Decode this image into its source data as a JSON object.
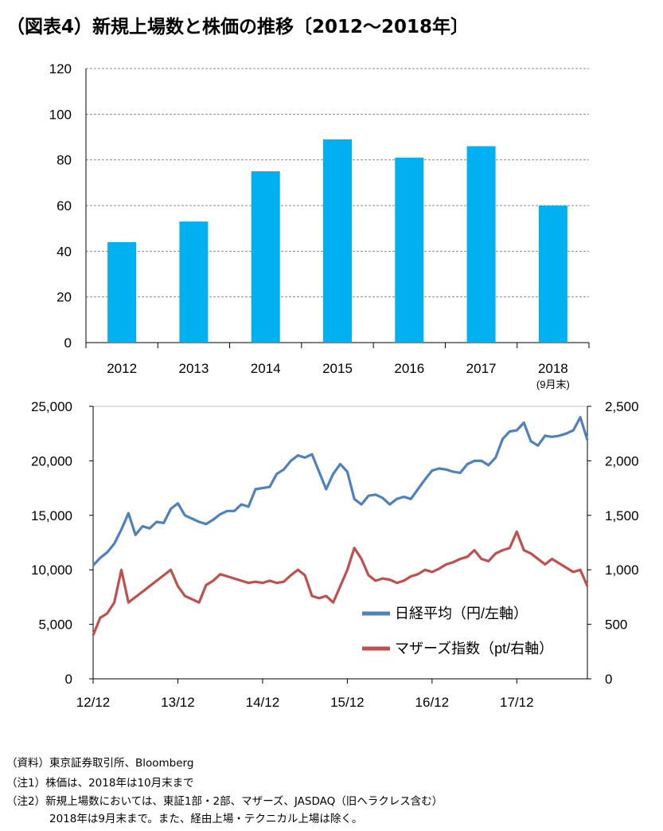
{
  "title": "（図表4）新規上場数と株価の推移〔2012～2018年〕",
  "colors": {
    "bar": "#00B0F0",
    "nikkei": "#4F81BD",
    "mothers": "#C0504D",
    "grid": "#8c8c8c"
  },
  "chart_data": [
    {
      "type": "bar",
      "categories": [
        "2012",
        "2013",
        "2014",
        "2015",
        "2016",
        "2017",
        "2018"
      ],
      "category_sub_labels": [
        "",
        "",
        "",
        "",
        "",
        "",
        "(9月末)"
      ],
      "values": [
        44,
        53,
        75,
        89,
        81,
        86,
        60
      ],
      "ylim": [
        0,
        120
      ],
      "yticks": [
        "0",
        "20",
        "40",
        "60",
        "80",
        "100",
        "120"
      ],
      "grid": true
    },
    {
      "type": "line",
      "x_ticks": [
        "12/12",
        "13/12",
        "14/12",
        "15/12",
        "16/12",
        "17/12"
      ],
      "y_left": {
        "ylim": [
          0,
          25000
        ],
        "ticks": [
          "0",
          "5,000",
          "10,000",
          "15,000",
          "20,000",
          "25,000"
        ]
      },
      "y_right": {
        "ylim": [
          0,
          2500
        ],
        "ticks": [
          "0",
          "500",
          "1,000",
          "1,500",
          "2,000",
          "2,500"
        ]
      },
      "legend_position": "bottom-right",
      "series": [
        {
          "name": "日経平均（円/左軸）",
          "axis": "left",
          "x": [
            "2012-12",
            "2013-01",
            "2013-02",
            "2013-03",
            "2013-04",
            "2013-05",
            "2013-06",
            "2013-07",
            "2013-08",
            "2013-09",
            "2013-10",
            "2013-11",
            "2013-12",
            "2014-01",
            "2014-02",
            "2014-03",
            "2014-04",
            "2014-05",
            "2014-06",
            "2014-07",
            "2014-08",
            "2014-09",
            "2014-10",
            "2014-11",
            "2014-12",
            "2015-01",
            "2015-02",
            "2015-03",
            "2015-04",
            "2015-05",
            "2015-06",
            "2015-07",
            "2015-08",
            "2015-09",
            "2015-10",
            "2015-11",
            "2015-12",
            "2016-01",
            "2016-02",
            "2016-03",
            "2016-04",
            "2016-05",
            "2016-06",
            "2016-07",
            "2016-08",
            "2016-09",
            "2016-10",
            "2016-11",
            "2016-12",
            "2017-01",
            "2017-02",
            "2017-03",
            "2017-04",
            "2017-05",
            "2017-06",
            "2017-07",
            "2017-08",
            "2017-09",
            "2017-10",
            "2017-11",
            "2017-12",
            "2018-01",
            "2018-02",
            "2018-03",
            "2018-04",
            "2018-05",
            "2018-06",
            "2018-07",
            "2018-08",
            "2018-09",
            "2018-10"
          ],
          "values": [
            10400,
            11100,
            11600,
            12400,
            13700,
            15200,
            13200,
            14000,
            13800,
            14400,
            14300,
            15600,
            16100,
            15000,
            14700,
            14400,
            14200,
            14600,
            15100,
            15400,
            15400,
            16000,
            15800,
            17400,
            17500,
            17600,
            18800,
            19200,
            20000,
            20500,
            20300,
            20600,
            19000,
            17400,
            18800,
            19700,
            19000,
            16500,
            16000,
            16800,
            16900,
            16600,
            16000,
            16500,
            16700,
            16500,
            17400,
            18300,
            19100,
            19300,
            19200,
            19000,
            18900,
            19700,
            20000,
            20000,
            19600,
            20300,
            22000,
            22700,
            22800,
            23500,
            21800,
            21400,
            22300,
            22200,
            22300,
            22500,
            22800,
            24000,
            21900
          ]
        },
        {
          "name": "マザーズ指数（pt/右軸）",
          "axis": "right",
          "x": [
            "2012-12",
            "2013-01",
            "2013-02",
            "2013-03",
            "2013-04",
            "2013-05",
            "2013-06",
            "2013-07",
            "2013-08",
            "2013-09",
            "2013-10",
            "2013-11",
            "2013-12",
            "2014-01",
            "2014-02",
            "2014-03",
            "2014-04",
            "2014-05",
            "2014-06",
            "2014-07",
            "2014-08",
            "2014-09",
            "2014-10",
            "2014-11",
            "2014-12",
            "2015-01",
            "2015-02",
            "2015-03",
            "2015-04",
            "2015-05",
            "2015-06",
            "2015-07",
            "2015-08",
            "2015-09",
            "2015-10",
            "2015-11",
            "2015-12",
            "2016-01",
            "2016-02",
            "2016-03",
            "2016-04",
            "2016-05",
            "2016-06",
            "2016-07",
            "2016-08",
            "2016-09",
            "2016-10",
            "2016-11",
            "2016-12",
            "2017-01",
            "2017-02",
            "2017-03",
            "2017-04",
            "2017-05",
            "2017-06",
            "2017-07",
            "2017-08",
            "2017-09",
            "2017-10",
            "2017-11",
            "2017-12",
            "2018-01",
            "2018-02",
            "2018-03",
            "2018-04",
            "2018-05",
            "2018-06",
            "2018-07",
            "2018-08",
            "2018-09",
            "2018-10"
          ],
          "values": [
            400,
            560,
            600,
            700,
            1000,
            700,
            750,
            800,
            850,
            900,
            950,
            1000,
            850,
            760,
            730,
            700,
            860,
            900,
            960,
            940,
            920,
            900,
            880,
            890,
            880,
            900,
            880,
            890,
            950,
            1000,
            950,
            760,
            740,
            760,
            700,
            850,
            1000,
            1200,
            1100,
            950,
            900,
            920,
            910,
            880,
            900,
            940,
            960,
            1000,
            980,
            1010,
            1050,
            1070,
            1100,
            1120,
            1180,
            1100,
            1080,
            1150,
            1180,
            1200,
            1350,
            1180,
            1150,
            1100,
            1050,
            1100,
            1060,
            1020,
            980,
            1000,
            850
          ]
        }
      ]
    }
  ],
  "notes": [
    "（資料）東京証券取引所、Bloomberg",
    "（注1）株価は、2018年は10月末まで",
    "（注2）新規上場数においては、東証1部・2部、マザーズ、JASDAQ（旧ヘラクレス含む）",
    "2018年は9月末まで。また、経由上場・テクニカル上場は除く。"
  ]
}
